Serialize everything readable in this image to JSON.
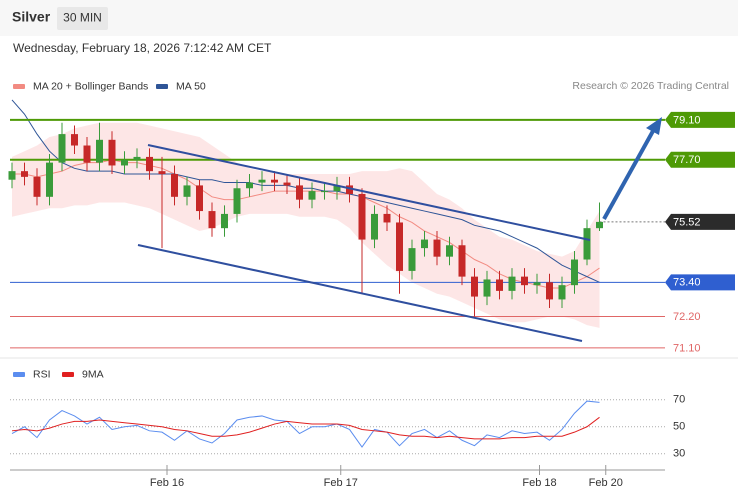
{
  "header": {
    "instrument": "Silver",
    "interval": "30 MIN",
    "timestamp": "Wednesday, February 18, 2026 7:12:42 AM CET",
    "credit": "Research © 2026 Trading Central"
  },
  "chart_data": [
    {
      "type": "candlestick",
      "ylim": [
        70.85,
        81.2
      ],
      "xlim": [
        0,
        47
      ],
      "up_color": "#3a9b3a",
      "down_color": "#c62828",
      "open": [
        77.0,
        77.3,
        77.1,
        76.4,
        77.6,
        78.6,
        78.2,
        77.6,
        78.4,
        77.5,
        77.7,
        77.8,
        77.3,
        77.2,
        76.4,
        76.8,
        75.9,
        75.3,
        75.8,
        76.7,
        76.9,
        77.0,
        76.9,
        76.8,
        76.3,
        76.6,
        76.6,
        76.8,
        76.5,
        74.9,
        75.8,
        75.5,
        73.8,
        74.6,
        74.9,
        74.3,
        74.7,
        73.6,
        72.9,
        73.5,
        73.1,
        73.6,
        73.3,
        73.4,
        72.8,
        73.3,
        74.2,
        75.3
      ],
      "high": [
        77.6,
        77.6,
        77.4,
        77.9,
        79.0,
        78.9,
        78.5,
        79.0,
        78.7,
        78.0,
        78.1,
        78.1,
        77.8,
        77.5,
        77.1,
        77.0,
        76.2,
        76.1,
        77.0,
        77.2,
        77.3,
        77.3,
        77.2,
        77.1,
        76.9,
        76.9,
        77.1,
        77.1,
        76.7,
        76.1,
        76.1,
        75.8,
        74.9,
        75.2,
        75.2,
        75.0,
        74.9,
        73.9,
        73.8,
        73.8,
        73.9,
        73.9,
        73.7,
        73.7,
        73.6,
        74.5,
        75.6,
        76.2
      ],
      "low": [
        76.7,
        76.8,
        76.1,
        76.1,
        77.3,
        77.9,
        77.3,
        77.3,
        77.2,
        77.2,
        77.4,
        77.0,
        74.6,
        76.1,
        76.1,
        75.6,
        75.0,
        75.0,
        75.5,
        76.4,
        76.6,
        76.6,
        76.5,
        76.0,
        76.0,
        76.3,
        76.3,
        76.2,
        73.0,
        74.6,
        75.2,
        73.0,
        73.5,
        74.3,
        74.0,
        74.0,
        73.3,
        72.2,
        72.6,
        72.8,
        72.8,
        73.0,
        73.0,
        72.5,
        72.5,
        73.0,
        74.0,
        75.2
      ],
      "close": [
        77.3,
        77.1,
        76.4,
        77.6,
        78.6,
        78.2,
        77.6,
        78.4,
        77.5,
        77.7,
        77.8,
        77.3,
        77.2,
        76.4,
        76.8,
        75.9,
        75.3,
        75.8,
        76.7,
        76.9,
        77.0,
        76.9,
        76.8,
        76.3,
        76.6,
        76.6,
        76.8,
        76.5,
        74.9,
        75.8,
        75.5,
        73.8,
        74.6,
        74.9,
        74.3,
        74.7,
        73.6,
        72.9,
        73.5,
        73.1,
        73.6,
        73.3,
        73.4,
        72.8,
        73.3,
        74.2,
        75.3,
        75.52
      ],
      "series": [
        {
          "name": "MA 20 + Bollinger Bands",
          "color": "#f28b82",
          "band_color": "#fde0e0",
          "values": [
            77.2,
            77.2,
            77.1,
            77.2,
            77.3,
            77.5,
            77.6,
            77.6,
            77.7,
            77.6,
            77.6,
            77.5,
            77.4,
            77.2,
            77.0,
            76.7,
            76.4,
            76.3,
            76.3,
            76.4,
            76.5,
            76.6,
            76.6,
            76.6,
            76.6,
            76.6,
            76.5,
            76.5,
            76.4,
            76.2,
            76.0,
            75.7,
            75.5,
            75.2,
            75.0,
            74.8,
            74.5,
            74.2,
            74.0,
            73.7,
            73.5,
            73.4,
            73.3,
            73.2,
            73.2,
            73.4,
            73.6,
            73.9
          ],
          "upper": [
            77.8,
            78.0,
            78.2,
            78.5,
            78.6,
            78.8,
            78.9,
            79.0,
            79.0,
            79.0,
            79.0,
            78.9,
            78.8,
            78.7,
            78.6,
            78.5,
            78.2,
            77.9,
            77.6,
            77.4,
            77.3,
            77.3,
            77.2,
            77.2,
            77.2,
            77.2,
            77.2,
            77.2,
            77.3,
            77.3,
            77.3,
            77.4,
            77.3,
            76.9,
            76.5,
            76.3,
            76.0,
            75.6,
            75.3,
            75.0,
            74.9,
            74.7,
            74.5,
            74.4,
            74.3,
            74.5,
            75.2,
            75.9
          ],
          "lower": [
            75.7,
            75.8,
            75.9,
            76.0,
            76.0,
            76.1,
            76.1,
            76.2,
            76.2,
            76.2,
            76.1,
            76.0,
            75.8,
            75.6,
            75.4,
            75.2,
            75.3,
            75.5,
            75.7,
            75.8,
            75.8,
            75.8,
            75.8,
            75.7,
            75.7,
            75.7,
            75.6,
            75.3,
            74.8,
            74.4,
            74.0,
            73.7,
            73.4,
            73.2,
            73.0,
            72.9,
            72.7,
            72.5,
            72.3,
            72.1,
            72.0,
            72.0,
            72.1,
            72.2,
            72.2,
            72.1,
            71.9,
            71.8
          ]
        },
        {
          "name": "MA 50",
          "color": "#2f5597",
          "values": [
            79.8,
            79.3,
            78.6,
            78.0,
            77.6,
            77.4,
            77.3,
            77.3,
            77.3,
            77.2,
            77.2,
            77.2,
            77.2,
            77.2,
            77.1,
            77.0,
            77.0,
            76.9,
            76.9,
            76.9,
            76.8,
            76.8,
            76.8,
            76.7,
            76.7,
            76.6,
            76.6,
            76.5,
            76.4,
            76.3,
            76.2,
            76.1,
            76.0,
            75.9,
            75.8,
            75.7,
            75.6,
            75.4,
            75.3,
            75.2,
            75.0,
            74.8,
            74.6,
            74.3,
            74.0,
            73.8,
            73.6,
            73.4
          ]
        }
      ],
      "levels": [
        {
          "value": 79.1,
          "label": "79.10",
          "color": "#4e9a06",
          "style": "solid",
          "box": true
        },
        {
          "value": 77.7,
          "label": "77.70",
          "color": "#4e9a06",
          "style": "solid",
          "box": true
        },
        {
          "value": 75.52,
          "label": "75.52",
          "color": "#2b2b2b",
          "style": "dotted",
          "box": true
        },
        {
          "value": 73.4,
          "label": "73.40",
          "color": "#2f5fd0",
          "style": "solid",
          "box": true
        },
        {
          "value": 72.2,
          "label": "72.20",
          "color": "#e06666",
          "style": "solid",
          "box": false
        },
        {
          "value": 71.1,
          "label": "71.10",
          "color": "#e06666",
          "style": "solid",
          "box": false
        }
      ]
    },
    {
      "type": "line",
      "ylim": [
        18,
        92
      ],
      "xlim": [
        0,
        47
      ],
      "yticks": [
        70,
        50,
        30
      ],
      "xticks": [
        {
          "value": 12.4,
          "label": "Feb 16"
        },
        {
          "value": 26.3,
          "label": "Feb 17"
        },
        {
          "value": 42.2,
          "label": "Feb 18"
        },
        {
          "value": 47.5,
          "label": "Feb 20"
        }
      ],
      "series": [
        {
          "name": "RSI",
          "color": "#5b8def",
          "values": [
            45,
            50,
            42,
            55,
            62,
            58,
            52,
            57,
            48,
            50,
            51,
            47,
            46,
            40,
            47,
            41,
            38,
            45,
            55,
            57,
            58,
            55,
            54,
            45,
            50,
            50,
            52,
            48,
            35,
            48,
            46,
            36,
            45,
            48,
            42,
            47,
            40,
            36,
            44,
            42,
            47,
            45,
            46,
            40,
            48,
            60,
            69,
            68
          ]
        },
        {
          "name": "9MA",
          "color": "#e02020",
          "values": [
            47,
            48,
            47,
            49,
            52,
            54,
            54,
            55,
            54,
            53,
            52,
            51,
            50,
            48,
            47,
            45,
            43,
            43,
            44,
            46,
            49,
            52,
            54,
            53,
            52,
            52,
            52,
            51,
            48,
            47,
            46,
            44,
            43,
            43,
            42,
            43,
            42,
            41,
            41,
            41,
            42,
            42,
            43,
            43,
            43,
            46,
            50,
            57
          ]
        }
      ]
    }
  ]
}
